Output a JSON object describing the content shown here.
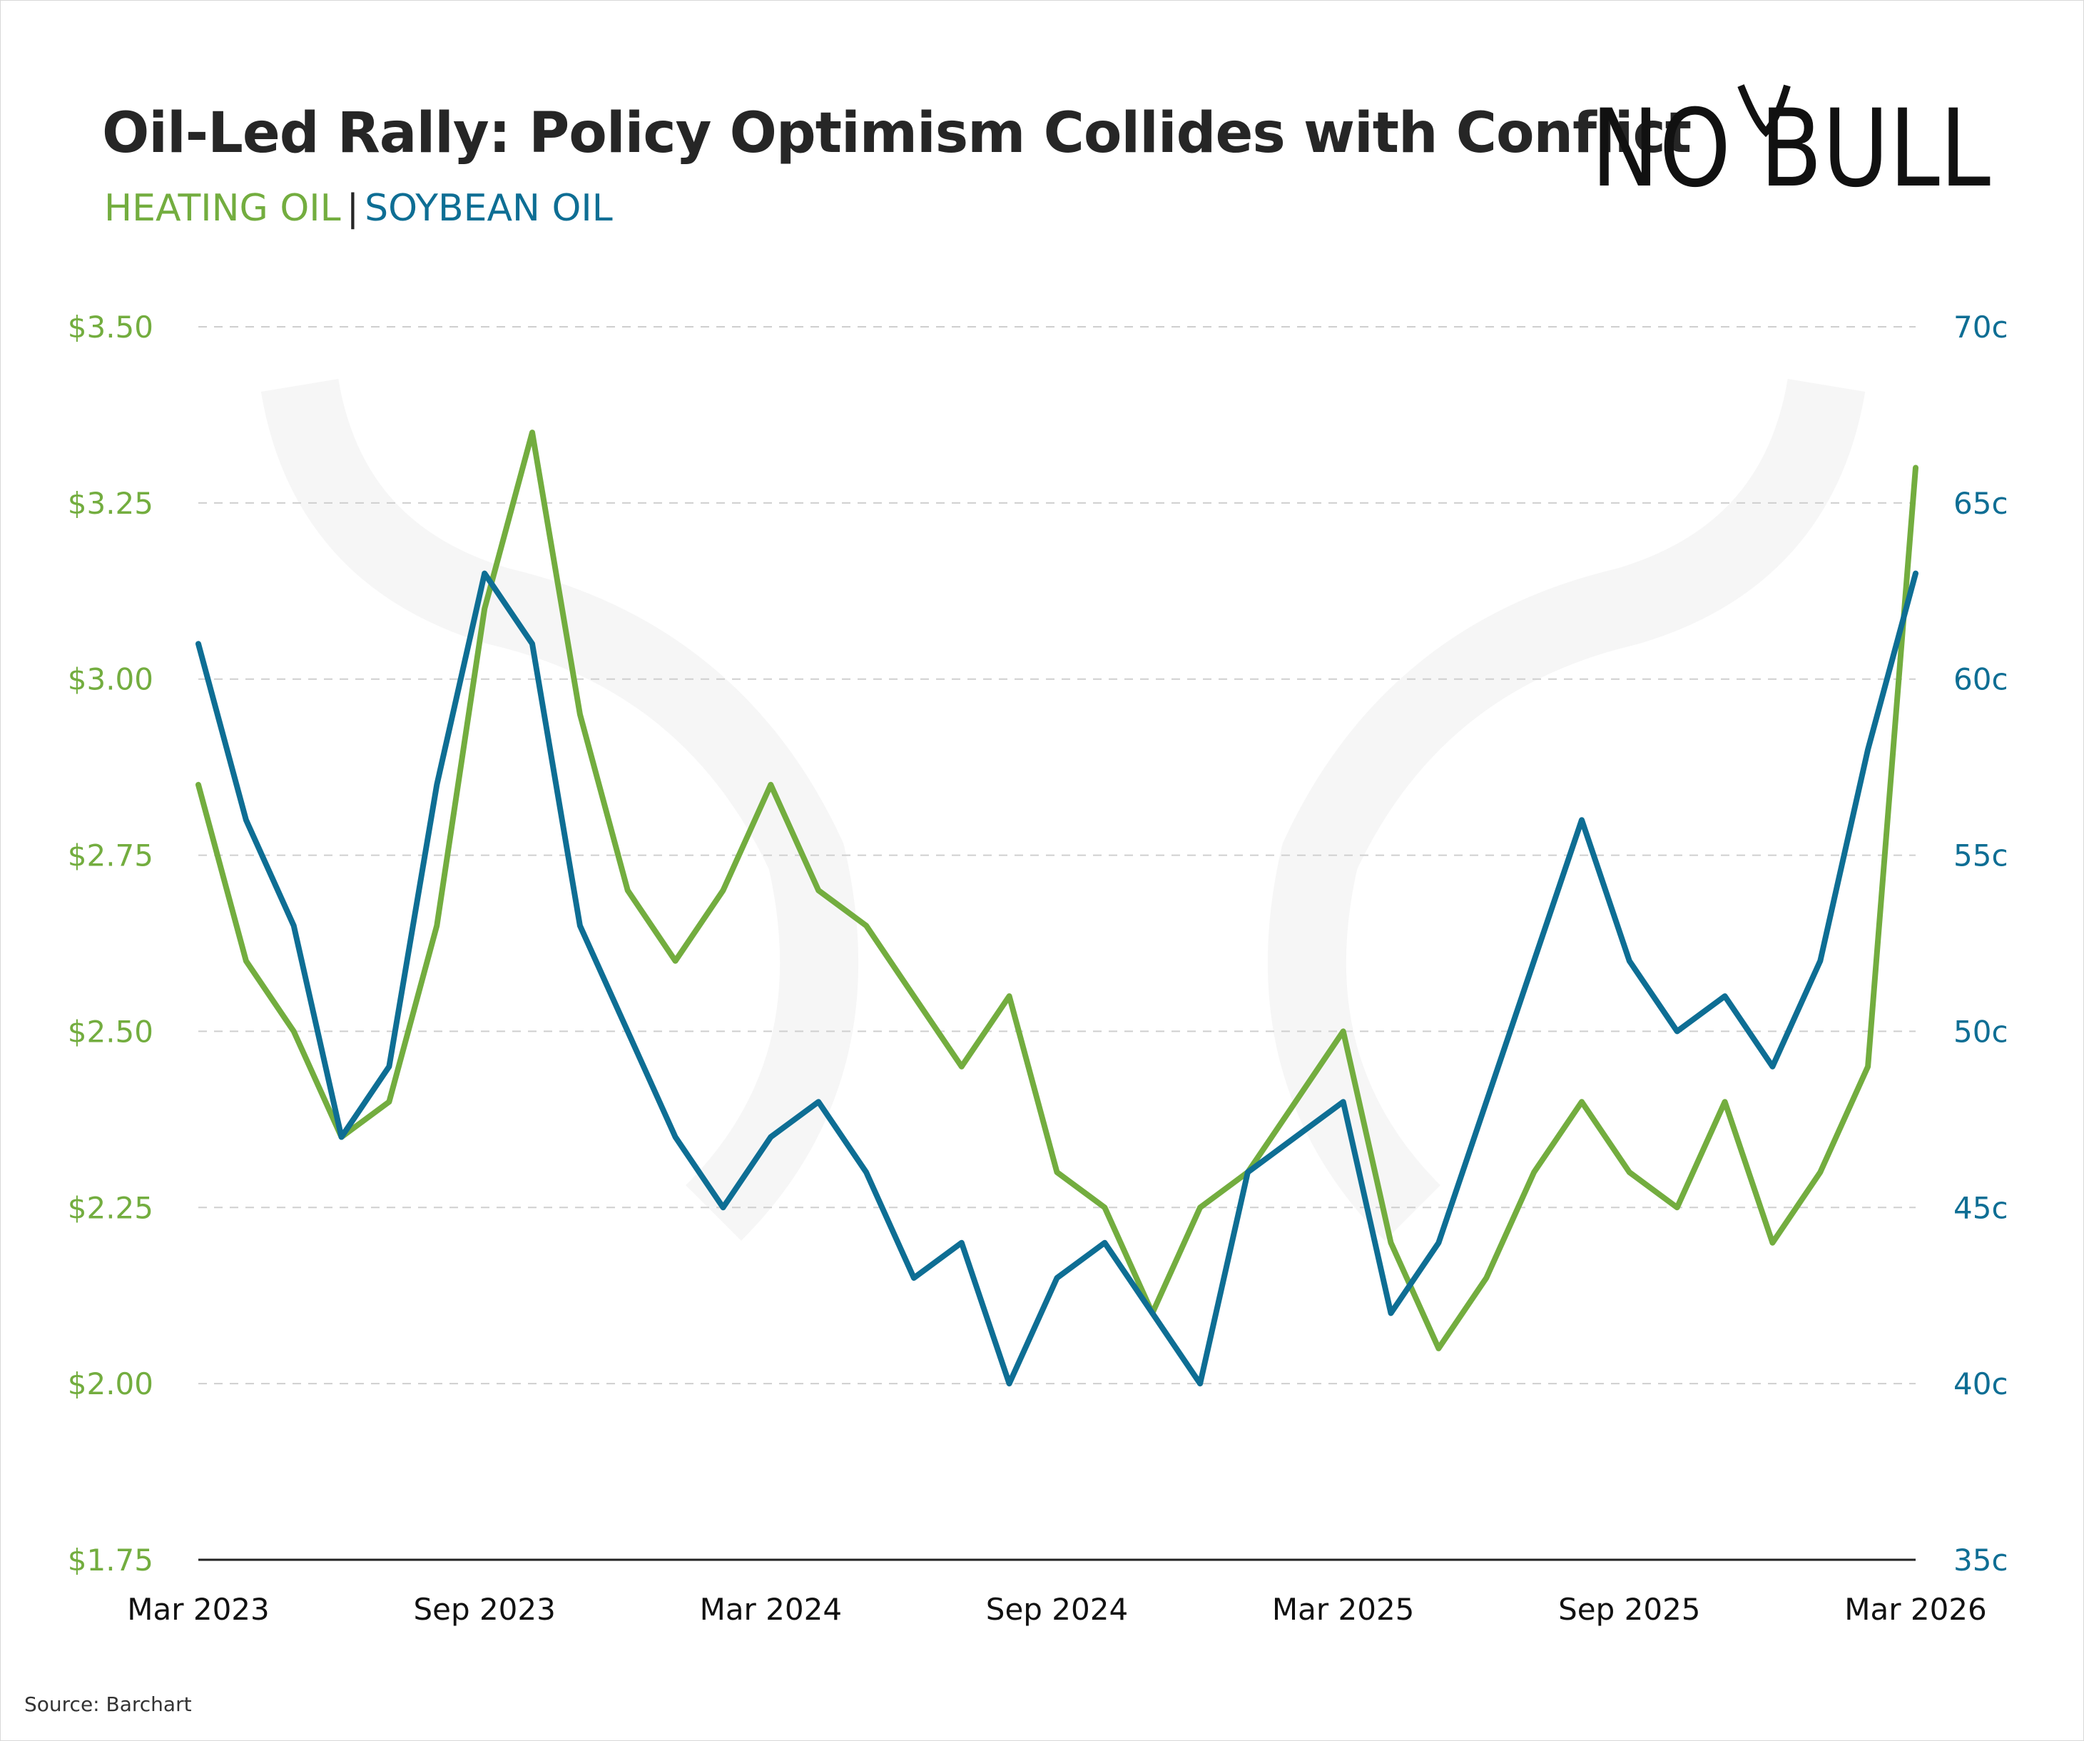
{
  "title": "Oil-Led Rally: Policy Optimism Collides with Conflict",
  "subtitle": {
    "heating": "HEATING OIL",
    "separator": "|",
    "soybean": "SOYBEAN OIL"
  },
  "logo": {
    "text": "NO BULL"
  },
  "source": "Source: Barchart",
  "colors": {
    "heating_oil": "#73ad3f",
    "soybean_oil": "#0e6e94",
    "grid": "#cfcfcf",
    "axis": "#222222"
  },
  "chart_data": {
    "type": "line",
    "x_axis": {
      "ticks": [
        "Mar 2023",
        "Sep 2023",
        "Mar 2024",
        "Sep 2024",
        "Mar 2025",
        "Sep 2025",
        "Mar 2026"
      ],
      "range": [
        "2023-03",
        "2026-03"
      ]
    },
    "y_left": {
      "unit": "$/gal",
      "range": [
        1.75,
        3.5
      ],
      "ticks": [
        3.5,
        3.25,
        3.0,
        2.75,
        2.5,
        2.25,
        2.0,
        1.75
      ],
      "tick_labels": [
        "$3.50",
        "$3.25",
        "$3.00",
        "$2.75",
        "$2.50",
        "$2.25",
        "$2.00",
        "$1.75"
      ]
    },
    "y_right": {
      "unit": "cents/lb",
      "range": [
        35,
        70
      ],
      "ticks": [
        70,
        65,
        60,
        55,
        50,
        45,
        40,
        35
      ],
      "tick_labels": [
        "70c",
        "65c",
        "60c",
        "55c",
        "50c",
        "45c",
        "40c",
        "35c"
      ]
    },
    "grid": "horizontal dashed",
    "series": [
      {
        "name": "HEATING OIL",
        "axis": "left",
        "x": [
          "2023-03",
          "2023-04",
          "2023-05",
          "2023-06",
          "2023-07",
          "2023-08",
          "2023-09",
          "2023-10",
          "2023-11",
          "2023-12",
          "2024-01",
          "2024-02",
          "2024-03",
          "2024-04",
          "2024-05",
          "2024-06",
          "2024-07",
          "2024-08",
          "2024-09",
          "2024-10",
          "2024-11",
          "2024-12",
          "2025-01",
          "2025-02",
          "2025-03",
          "2025-04",
          "2025-05",
          "2025-06",
          "2025-07",
          "2025-08",
          "2025-09",
          "2025-10",
          "2025-11",
          "2025-12",
          "2026-01",
          "2026-02",
          "2026-03"
        ],
        "values": [
          2.85,
          2.6,
          2.5,
          2.35,
          2.4,
          2.65,
          3.1,
          3.35,
          2.95,
          2.7,
          2.6,
          2.7,
          2.85,
          2.7,
          2.65,
          2.55,
          2.45,
          2.55,
          2.3,
          2.25,
          2.1,
          2.25,
          2.3,
          2.4,
          2.5,
          2.2,
          2.05,
          2.15,
          2.3,
          2.4,
          2.3,
          2.25,
          2.4,
          2.2,
          2.3,
          2.45,
          3.3
        ]
      },
      {
        "name": "SOYBEAN OIL",
        "axis": "right",
        "x": [
          "2023-03",
          "2023-04",
          "2023-05",
          "2023-06",
          "2023-07",
          "2023-08",
          "2023-09",
          "2023-10",
          "2023-11",
          "2023-12",
          "2024-01",
          "2024-02",
          "2024-03",
          "2024-04",
          "2024-05",
          "2024-06",
          "2024-07",
          "2024-08",
          "2024-09",
          "2024-10",
          "2024-11",
          "2024-12",
          "2025-01",
          "2025-02",
          "2025-03",
          "2025-04",
          "2025-05",
          "2025-06",
          "2025-07",
          "2025-08",
          "2025-09",
          "2025-10",
          "2025-11",
          "2025-12",
          "2026-01",
          "2026-02",
          "2026-03"
        ],
        "values": [
          61,
          56,
          53,
          47,
          49,
          57,
          63,
          61,
          53,
          50,
          47,
          45,
          47,
          48,
          46,
          43,
          44,
          40,
          43,
          44,
          42,
          40,
          46,
          47,
          48,
          42,
          44,
          48,
          52,
          56,
          52,
          50,
          51,
          49,
          52,
          58,
          63
        ]
      }
    ]
  }
}
